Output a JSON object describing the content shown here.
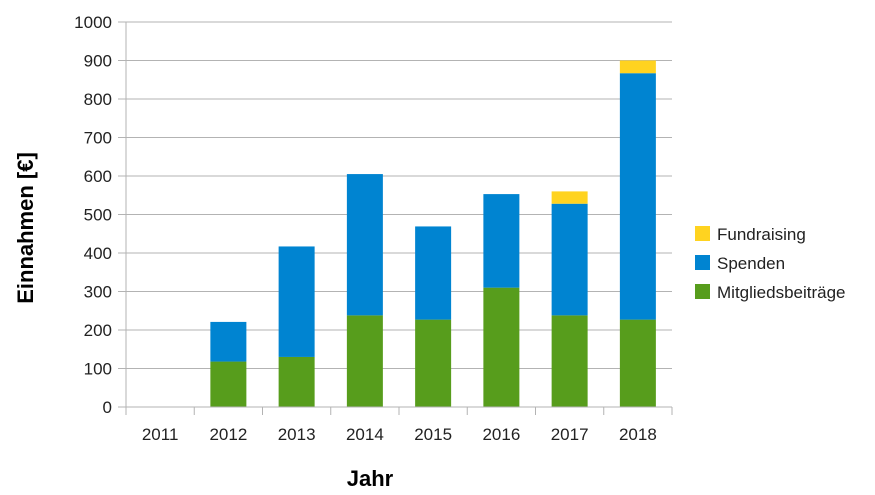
{
  "chart_data": {
    "type": "bar",
    "stacked": true,
    "title": "",
    "xlabel": "Jahr",
    "ylabel": "Einnahmen [€]",
    "categories": [
      "2011",
      "2012",
      "2013",
      "2014",
      "2015",
      "2016",
      "2017",
      "2018"
    ],
    "ylim": [
      0,
      1000
    ],
    "yticks": [
      0,
      100,
      200,
      300,
      400,
      500,
      600,
      700,
      800,
      900,
      1000
    ],
    "grid": true,
    "legend_position": "right",
    "series": [
      {
        "name": "Mitgliedsbeiträge",
        "color": "#579d1c",
        "values": [
          0,
          118,
          130,
          238,
          227,
          310,
          238,
          227
        ]
      },
      {
        "name": "Spenden",
        "color": "#0084d1",
        "values": [
          0,
          103,
          287,
          367,
          242,
          243,
          290,
          640
        ]
      },
      {
        "name": "Fundraising",
        "color": "#ffd320",
        "values": [
          0,
          0,
          0,
          0,
          0,
          0,
          32,
          33
        ]
      }
    ],
    "legend_order": [
      "Fundraising",
      "Spenden",
      "Mitgliedsbeiträge"
    ]
  }
}
